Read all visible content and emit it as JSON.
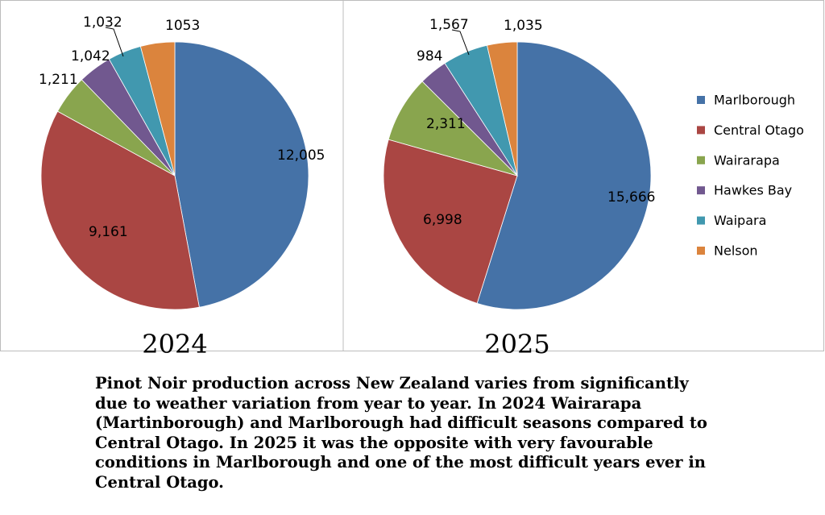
{
  "chart_data": [
    {
      "type": "pie",
      "title": "2024",
      "categories": [
        "Marlborough",
        "Central Otago",
        "Wairarapa",
        "Hawkes Bay",
        "Waipara",
        "Nelson"
      ],
      "values": [
        12005,
        9161,
        1211,
        1042,
        1032,
        1053
      ],
      "data_labels": [
        "12,005",
        "9,161",
        "1,211",
        "1,042",
        "1,032",
        "1053"
      ]
    },
    {
      "type": "pie",
      "title": "2025",
      "categories": [
        "Marlborough",
        "Central Otago",
        "Wairarapa",
        "Hawkes Bay",
        "Waipara",
        "Nelson"
      ],
      "values": [
        15666,
        6998,
        2311,
        984,
        1567,
        1035
      ],
      "data_labels": [
        "15,666",
        "6,998",
        "2,311",
        "984",
        "1,567",
        "1,035"
      ]
    }
  ],
  "legend": {
    "placement": "right",
    "items": [
      "Marlborough",
      "Central Otago",
      "Wairarapa",
      "Hawkes Bay",
      "Waipara",
      "Nelson"
    ]
  },
  "colors": [
    "#4572A7",
    "#AA4643",
    "#89A54E",
    "#71588F",
    "#4198AF",
    "#DB843D"
  ],
  "caption": "Pinot Noir production across New Zealand varies from significantly due to weather variation from year to year. In 2024 Wairarapa (Martinborough) and Marlborough had difficult seasons compared to Central Otago. In 2025 it was the opposite with very favourable conditions in Marlborough and one of the most difficult years ever in Central Otago."
}
